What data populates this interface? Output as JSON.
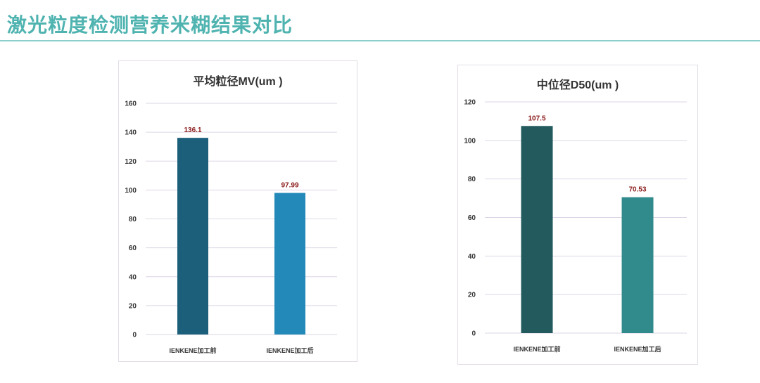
{
  "slide_title": "激光粒度检测营养米糊结果对比",
  "colors": {
    "title": "#4fb3b0",
    "rule": "#8ccfcc",
    "gridline": "#ddd6e6",
    "data_label": "#8b1a1a"
  },
  "chart_data": [
    {
      "type": "bar",
      "title": "平均粒径MV(um )",
      "xlabel": "",
      "ylabel": "",
      "categories": [
        "IENKENE加工前",
        "IENKENE加工后"
      ],
      "values": [
        136.1,
        97.99
      ],
      "data_labels": [
        "136.1",
        "97.99"
      ],
      "ylim": [
        0,
        160
      ],
      "yticks": [
        0,
        20,
        40,
        60,
        80,
        100,
        120,
        140,
        160
      ],
      "bar_colors": [
        "#1b5f7a",
        "#2389b8"
      ],
      "grid": true,
      "legend": "none"
    },
    {
      "type": "bar",
      "title": "中位径D50(um )",
      "xlabel": "",
      "ylabel": "",
      "categories": [
        "IENKENE加工前",
        "IENKENE加工后"
      ],
      "values": [
        107.5,
        70.53
      ],
      "data_labels": [
        "107.5",
        "70.53"
      ],
      "ylim": [
        0,
        120
      ],
      "yticks": [
        0,
        20,
        40,
        60,
        80,
        100,
        120
      ],
      "bar_colors": [
        "#225a5e",
        "#318a8c"
      ],
      "grid": true,
      "legend": "none"
    }
  ]
}
